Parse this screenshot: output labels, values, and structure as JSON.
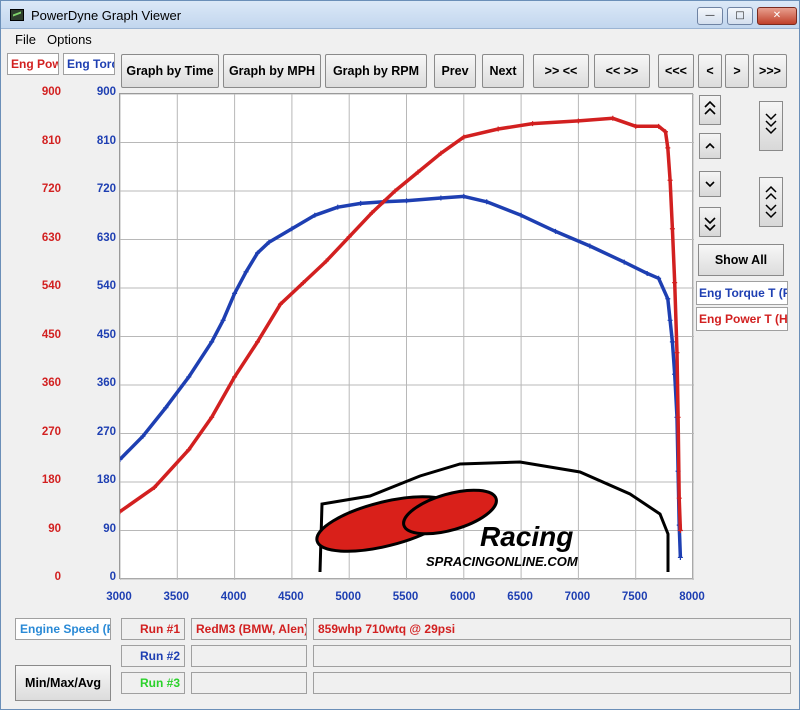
{
  "window": {
    "title": "PowerDyne Graph Viewer",
    "min_glyph": "—",
    "max_glyph": "□",
    "close_glyph": "✕"
  },
  "menu": {
    "file": "File",
    "options": "Options"
  },
  "tabs": {
    "power": "Eng Pow",
    "torque": "Eng Torq"
  },
  "toolbar": {
    "graph_by_time": "Graph by Time",
    "graph_by_mph": "Graph by MPH",
    "graph_by_rpm": "Graph by RPM",
    "prev": "Prev",
    "next": "Next",
    "zoom_in": ">> <<",
    "zoom_out": "<< >>",
    "first": "<<<",
    "back": "<",
    "forward": ">",
    "last": ">>>"
  },
  "side": {
    "show_all": "Show All"
  },
  "legend": {
    "torque": "Eng Torque T (Ft",
    "power": "Eng Power T (HP"
  },
  "bottom": {
    "engine_speed": "Engine Speed (RI",
    "min_max_avg": "Min/Max/Avg",
    "runs": [
      {
        "label": "Run #1",
        "name": "RedM3 (BMW, Alen)",
        "note": "859whp 710wtq @ 29psi"
      },
      {
        "label": "Run #2",
        "name": "",
        "note": ""
      },
      {
        "label": "Run #3",
        "name": "",
        "note": ""
      }
    ]
  },
  "logo": {
    "line1": "Racing",
    "line2": "SPRACINGONLINE.COM"
  },
  "colors": {
    "power": "#d22020",
    "torque": "#1e3fb2",
    "run3": "#2bd12b",
    "grid": "#b8b8b8"
  },
  "chart_data": {
    "type": "line",
    "x_ticks": [
      3000,
      3500,
      4000,
      4500,
      5000,
      5500,
      6000,
      6500,
      7000,
      7500,
      8000
    ],
    "y_ticks": [
      0,
      90,
      180,
      270,
      360,
      450,
      540,
      630,
      720,
      810,
      900
    ],
    "xlim": [
      3000,
      8000
    ],
    "ylim": [
      0,
      900
    ],
    "grid": true,
    "series": [
      {
        "name": "Eng Torque T (Ft",
        "color": "#1e3fb2",
        "x": [
          3000,
          3200,
          3400,
          3600,
          3800,
          3900,
          4000,
          4100,
          4200,
          4300,
          4500,
          4700,
          4900,
          5100,
          5300,
          5500,
          5800,
          6000,
          6200,
          6500,
          6800,
          7100,
          7400,
          7600,
          7700,
          7780,
          7800,
          7820,
          7840,
          7860,
          7870,
          7880,
          7890
        ],
        "values": [
          222,
          265,
          318,
          375,
          440,
          480,
          530,
          570,
          605,
          625,
          650,
          675,
          690,
          697,
          700,
          702,
          707,
          710,
          700,
          675,
          645,
          618,
          588,
          567,
          558,
          520,
          480,
          440,
          380,
          300,
          200,
          100,
          40
        ]
      },
      {
        "name": "Eng Power T (HP",
        "color": "#d22020",
        "x": [
          3000,
          3300,
          3600,
          3800,
          4000,
          4200,
          4400,
          4600,
          4800,
          5000,
          5200,
          5400,
          5600,
          5800,
          6000,
          6300,
          6600,
          7000,
          7300,
          7500,
          7700,
          7760,
          7780,
          7800,
          7820,
          7840,
          7860,
          7870,
          7880,
          7890
        ],
        "values": [
          125,
          170,
          240,
          300,
          375,
          440,
          510,
          550,
          590,
          635,
          680,
          720,
          755,
          790,
          820,
          835,
          845,
          850,
          855,
          840,
          840,
          830,
          800,
          740,
          650,
          550,
          420,
          300,
          150,
          90
        ]
      }
    ]
  }
}
